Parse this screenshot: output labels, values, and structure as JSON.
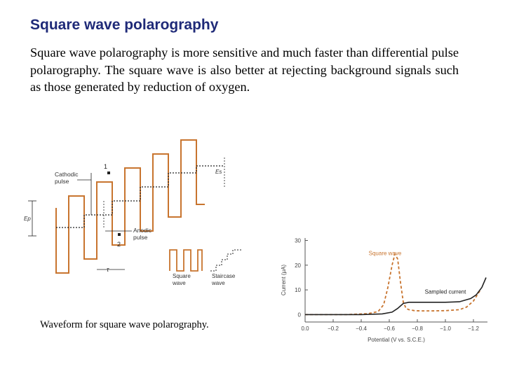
{
  "slide": {
    "title": "Square wave polarography",
    "paragraph": "Square wave polarography is more sensitive and much faster than differential pulse polarography. The square wave is also better at rejecting background signals such as those generated by reduction of oxygen.",
    "caption": "Waveform for square wave polarography."
  },
  "waveform_diagram": {
    "cathodic_pulse_line1": "Cathodic",
    "cathodic_pulse_line2": "pulse",
    "anodic_pulse_line1": "Anodic",
    "anodic_pulse_line2": "pulse",
    "label_1": "1",
    "label_2": "2",
    "label_es": "Es",
    "label_ep": "Ep",
    "label_tau": "τ",
    "square_wave_line1": "Square",
    "square_wave_line2": "wave",
    "staircase_wave_line1": "Staircase",
    "staircase_wave_line2": "wave",
    "wave_color": "#c8742e"
  },
  "chart_data": {
    "type": "line",
    "xlabel": "Potential (V vs. S.C.E.)",
    "ylabel": "Current (μA)",
    "x_ticks": [
      "0.0",
      "−0.2",
      "−0.4",
      "−0.6",
      "−0.8",
      "−1.0",
      "−1.2"
    ],
    "y_ticks": [
      "0",
      "10",
      "20",
      "30"
    ],
    "xlim": [
      0.0,
      -1.3
    ],
    "ylim": [
      -3,
      31
    ],
    "series": [
      {
        "name": "Square wave",
        "color": "#c8742e",
        "style": "dashed",
        "x": [
          0.0,
          -0.3,
          -0.45,
          -0.52,
          -0.56,
          -0.59,
          -0.62,
          -0.64,
          -0.66,
          -0.68,
          -0.7,
          -0.72,
          -0.74,
          -0.78,
          -0.82,
          -0.9,
          -1.0,
          -1.1,
          -1.15,
          -1.2,
          -1.25
        ],
        "y": [
          0.0,
          0.0,
          0.4,
          1.2,
          4.0,
          11.0,
          20.0,
          24.5,
          22.5,
          13.0,
          5.0,
          2.5,
          2.0,
          1.6,
          1.5,
          1.5,
          1.6,
          2.0,
          3.0,
          5.5,
          10.0
        ]
      },
      {
        "name": "Sampled current",
        "color": "#222222",
        "style": "solid",
        "x": [
          0.0,
          -0.4,
          -0.55,
          -0.62,
          -0.66,
          -0.7,
          -0.74,
          -0.8,
          -0.9,
          -1.0,
          -1.1,
          -1.18,
          -1.22,
          -1.26,
          -1.29
        ],
        "y": [
          0.0,
          0.0,
          0.3,
          1.0,
          2.5,
          4.5,
          5.0,
          5.0,
          5.0,
          5.0,
          5.2,
          6.5,
          8.0,
          11.0,
          15.0
        ]
      }
    ],
    "annotations": [
      {
        "text": "Square wave",
        "color": "#c8742e"
      },
      {
        "text": "Sampled current",
        "color": "#222222"
      }
    ]
  }
}
